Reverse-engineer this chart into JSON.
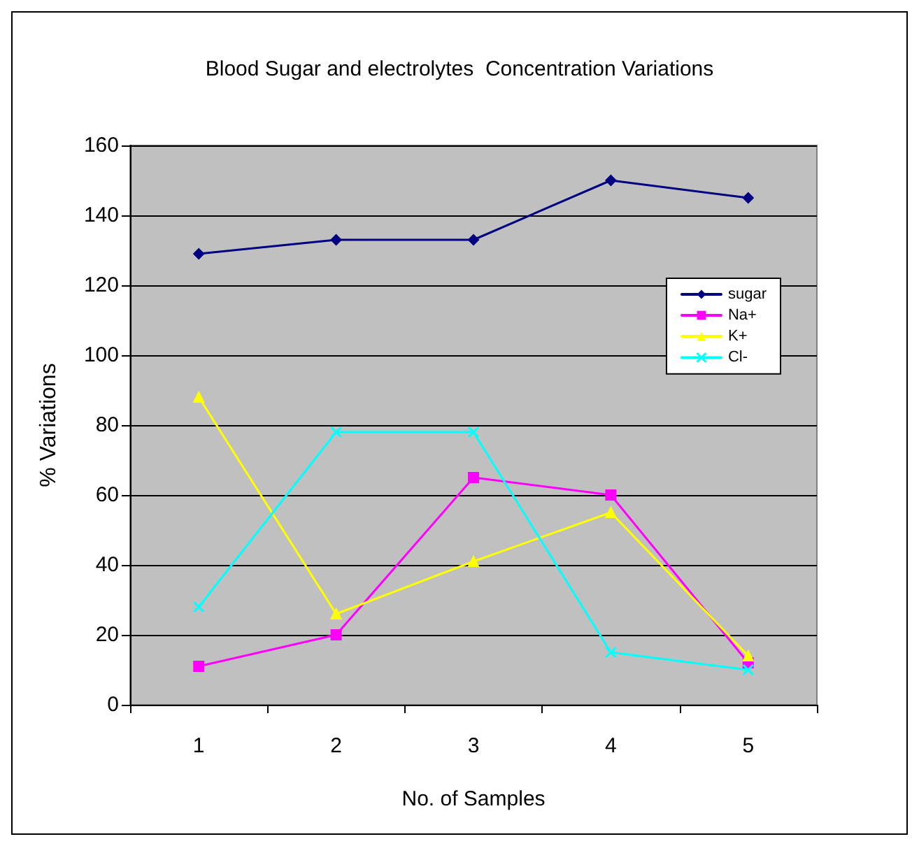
{
  "chart_data": {
    "type": "line",
    "title": "Blood Sugar and electrolytes  Concentration Variations",
    "xlabel": "No. of Samples",
    "ylabel": "% Variations",
    "categories": [
      "1",
      "2",
      "3",
      "4",
      "5"
    ],
    "series": [
      {
        "name": "sugar",
        "color": "#000080",
        "marker": "diamond",
        "values": [
          129,
          133,
          133,
          150,
          145
        ]
      },
      {
        "name": "Na+",
        "color": "#ff00ff",
        "marker": "square",
        "values": [
          11,
          20,
          65,
          60,
          12
        ]
      },
      {
        "name": "K+",
        "color": "#ffff00",
        "marker": "triangle",
        "values": [
          88,
          26,
          41,
          55,
          14
        ]
      },
      {
        "name": "Cl-",
        "color": "#00ffff",
        "marker": "cross",
        "values": [
          28,
          78,
          78,
          15,
          10
        ]
      }
    ],
    "ylim": [
      0,
      160
    ],
    "yticks": [
      0,
      20,
      40,
      60,
      80,
      100,
      120,
      140,
      160
    ],
    "grid": "y",
    "legend": "right",
    "line_style": "solid"
  }
}
